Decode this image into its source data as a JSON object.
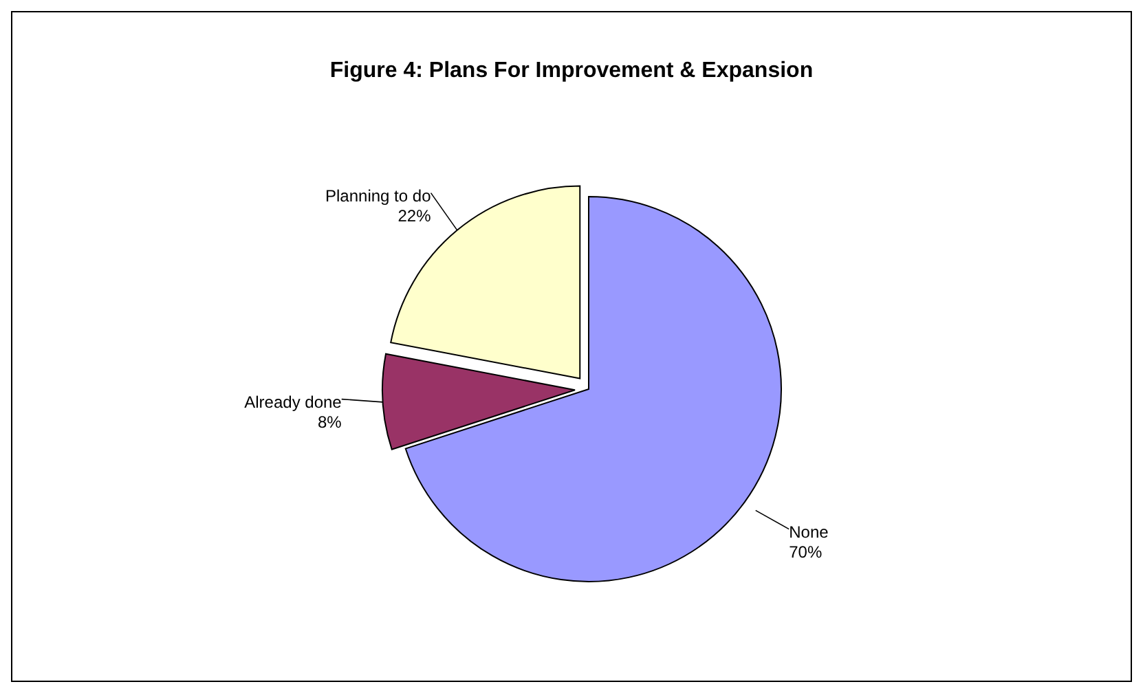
{
  "chart_data": {
    "type": "pie",
    "title": "Figure 4: Plans For Improvement & Expansion",
    "categories": [
      "None",
      "Already done",
      "Planning to do"
    ],
    "values": [
      70,
      8,
      22
    ],
    "value_labels": [
      "70%",
      "8%",
      "22%"
    ],
    "colors": [
      "#9999ff",
      "#993366",
      "#ffffcc"
    ]
  }
}
